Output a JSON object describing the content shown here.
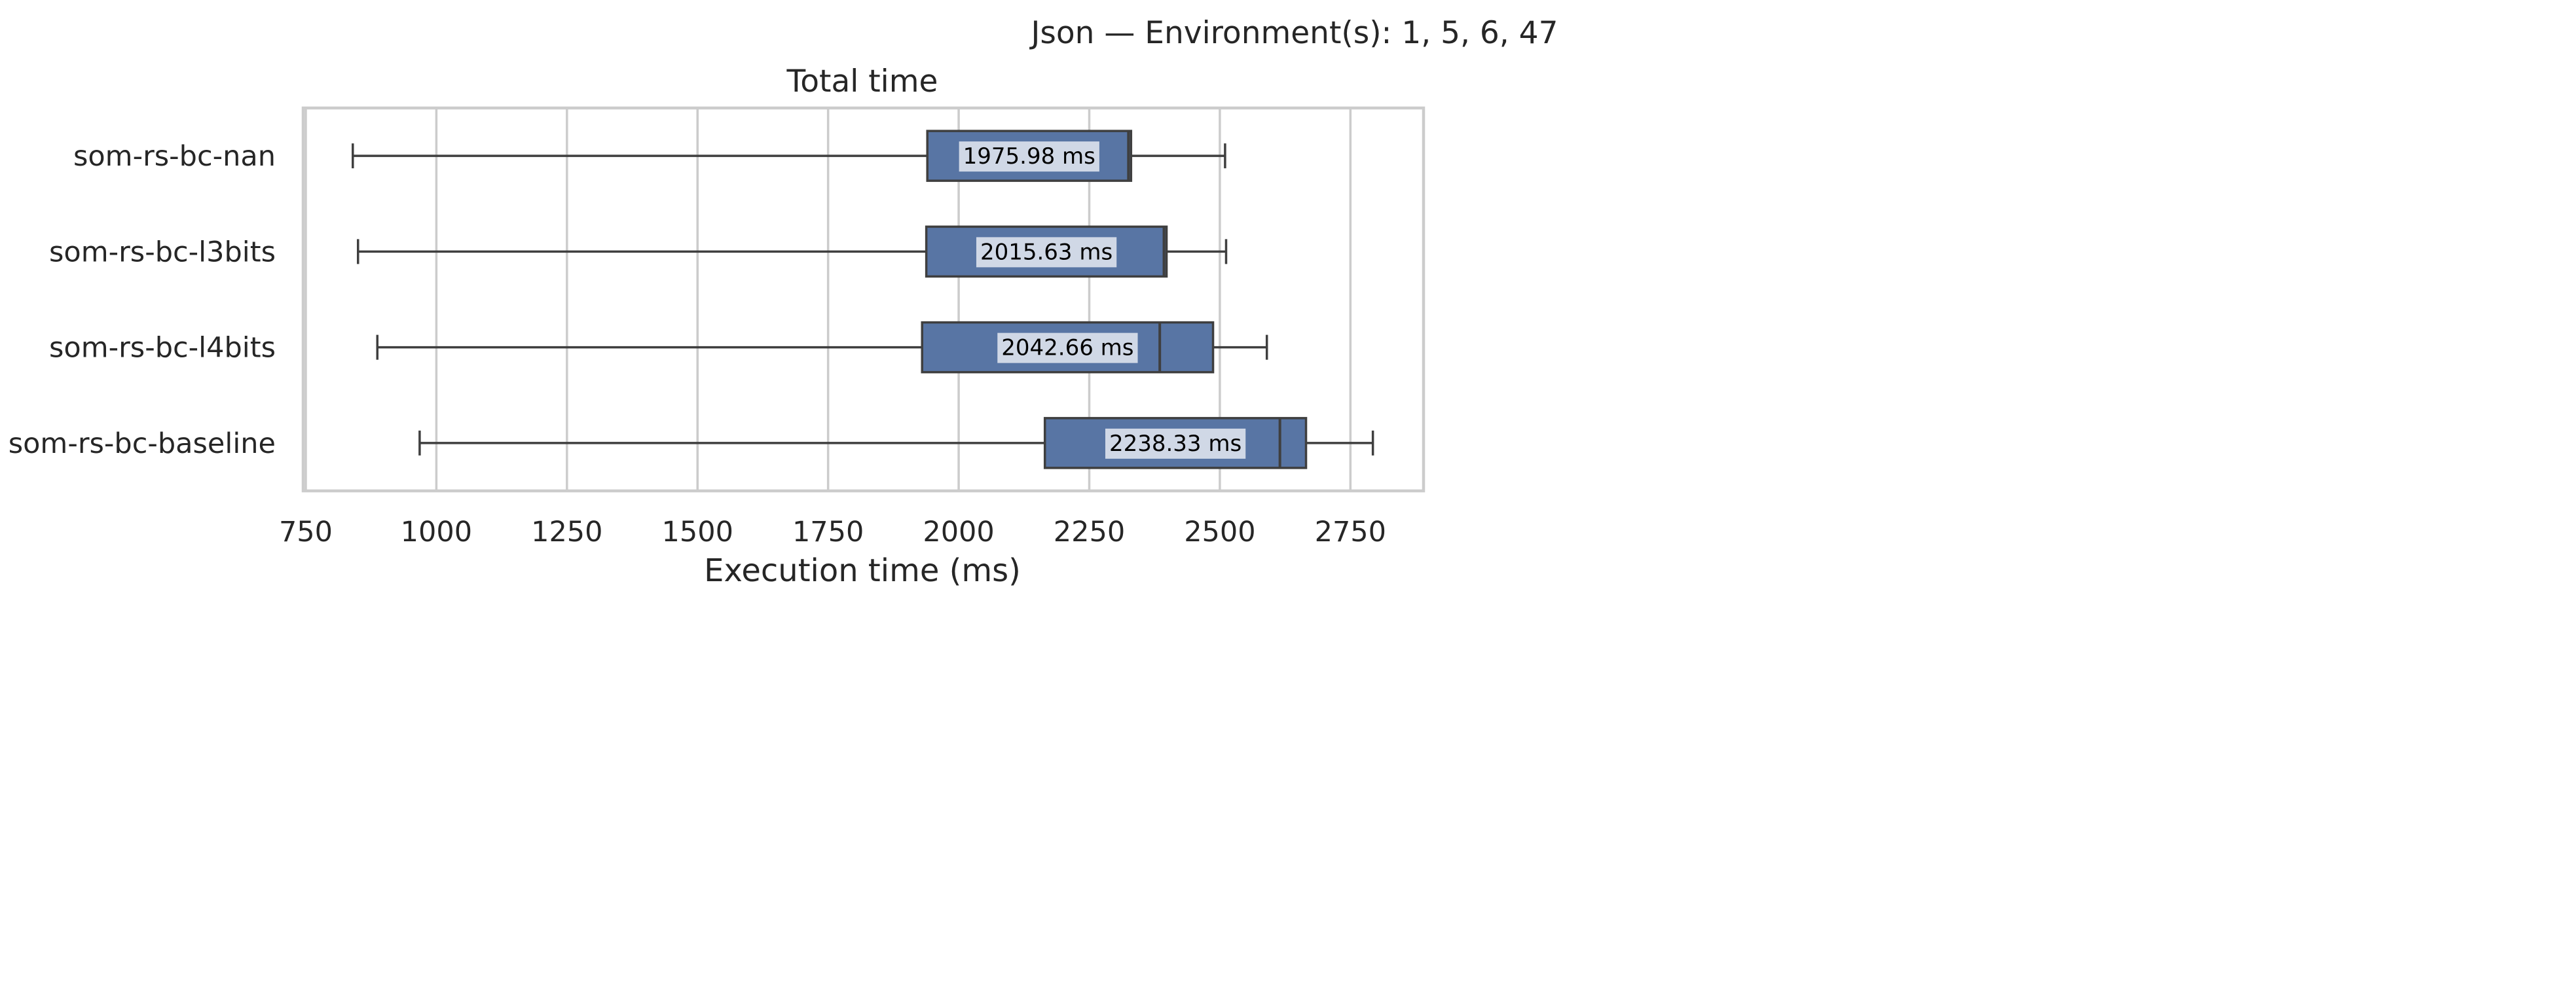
{
  "figure": {
    "suptitle": "Json — Environment(s): 1, 5, 6, 47"
  },
  "chart_data": {
    "type": "boxplot",
    "orientation": "horizontal",
    "title": "Total time",
    "xlabel": "Execution time (ms)",
    "ylabel": "",
    "xlim": [
      745,
      2890
    ],
    "xticks": [
      750,
      1000,
      1250,
      1500,
      1750,
      2000,
      2250,
      2500,
      2750
    ],
    "grid": "vertical",
    "box_color": "#5875a4",
    "categories": [
      "som-rs-bc-nan",
      "som-rs-bc-l3bits",
      "som-rs-bc-l4bits",
      "som-rs-bc-baseline"
    ],
    "boxes": [
      {
        "name": "som-rs-bc-nan",
        "whisker_low": 840,
        "q1": 1940,
        "median": 2325,
        "q3": 2330,
        "whisker_high": 2510,
        "mean_label": "1975.98 ms"
      },
      {
        "name": "som-rs-bc-l3bits",
        "whisker_low": 850,
        "q1": 1938,
        "median": 2393,
        "q3": 2398,
        "whisker_high": 2512,
        "mean_label": "2015.63 ms"
      },
      {
        "name": "som-rs-bc-l4bits",
        "whisker_low": 887,
        "q1": 1930,
        "median": 2385,
        "q3": 2487,
        "whisker_high": 2590,
        "mean_label": "2042.66 ms"
      },
      {
        "name": "som-rs-bc-baseline",
        "whisker_low": 968,
        "q1": 2165,
        "median": 2615,
        "q3": 2665,
        "whisker_high": 2793,
        "mean_label": "2238.33 ms"
      }
    ]
  }
}
